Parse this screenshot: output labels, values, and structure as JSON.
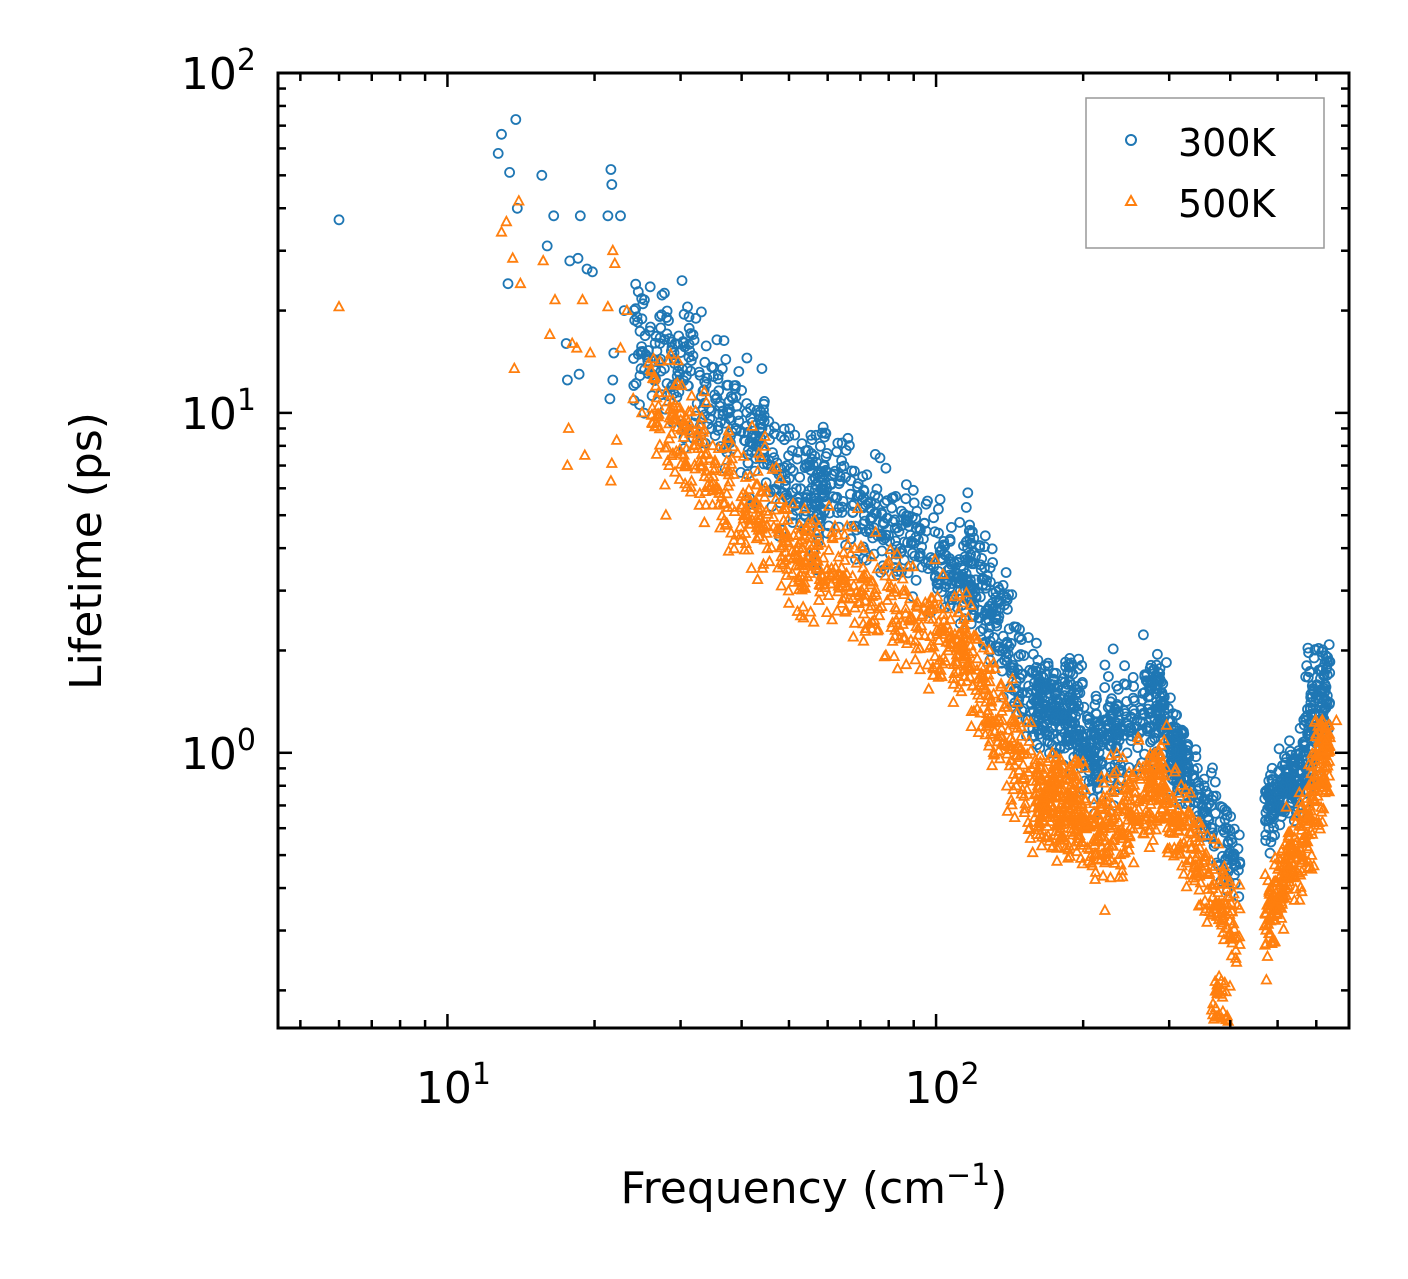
{
  "chart_data": {
    "type": "scatter",
    "title": "",
    "xlabel": "Frequency (cm",
    "xlabel_exp": "−1",
    "xlabel_suffix": ")",
    "ylabel": "Lifetime (ps)",
    "xscale": "log",
    "yscale": "log",
    "xlim": [
      4.5,
      700
    ],
    "ylim": [
      0.155,
      100
    ],
    "x_ticks": [
      {
        "value": 10,
        "base": "10",
        "exp": "1"
      },
      {
        "value": 100,
        "base": "10",
        "exp": "2"
      }
    ],
    "y_ticks": [
      {
        "value": 1,
        "base": "10",
        "exp": "0"
      },
      {
        "value": 10,
        "base": "10",
        "exp": "1"
      },
      {
        "value": 100,
        "base": "10",
        "exp": "2"
      }
    ],
    "legend_position": "top-right",
    "series": [
      {
        "name": "300K",
        "marker": "circle",
        "color": "#1f77b4",
        "outliers": [
          [
            6.0,
            37
          ],
          [
            12.7,
            58
          ],
          [
            12.9,
            66
          ],
          [
            13.3,
            24
          ],
          [
            13.4,
            51
          ],
          [
            13.8,
            73
          ],
          [
            13.9,
            40
          ],
          [
            15.6,
            50
          ],
          [
            16.0,
            31
          ],
          [
            16.5,
            38
          ],
          [
            17.5,
            16
          ],
          [
            17.6,
            12.5
          ],
          [
            17.8,
            28
          ],
          [
            18.5,
            28.5
          ],
          [
            18.6,
            13
          ],
          [
            18.7,
            38
          ],
          [
            19.3,
            26.5
          ],
          [
            19.8,
            26
          ],
          [
            21.3,
            38
          ],
          [
            21.5,
            11
          ],
          [
            21.6,
            52
          ],
          [
            21.7,
            47
          ],
          [
            21.8,
            12.5
          ],
          [
            21.9,
            15
          ],
          [
            22.6,
            38
          ],
          [
            23.0,
            20
          ],
          [
            24.5,
            18.5
          ],
          [
            25.0,
            15
          ],
          [
            25.3,
            21.5
          ],
          [
            26.0,
            23.5
          ],
          [
            27.8,
            22.5
          ],
          [
            30.2,
            24.5
          ],
          [
            30.5,
            19.5
          ],
          [
            31.0,
            20.5
          ],
          [
            41.0,
            14.5
          ],
          [
            44.0,
            13.5
          ]
        ],
        "bands": [
          {
            "x_start": 24,
            "x_end": 60,
            "y_start": 17,
            "y_end": 5.5,
            "spread": 0.18
          },
          {
            "x_start": 55,
            "x_end": 120,
            "y_start": 6.5,
            "y_end": 3.2,
            "spread": 0.15
          },
          {
            "x_start": 115,
            "x_end": 165,
            "y_start": 3.8,
            "y_end": 1.3,
            "spread": 0.16
          },
          {
            "x_start": 160,
            "x_end": 215,
            "y_start": 1.5,
            "y_end": 0.95,
            "spread": 0.13
          },
          {
            "x_start": 210,
            "x_end": 290,
            "y_start": 1.05,
            "y_end": 1.4,
            "spread": 0.17
          },
          {
            "x_start": 285,
            "x_end": 420,
            "y_start": 1.3,
            "y_end": 0.45,
            "spread": 0.12
          },
          {
            "x_start": 470,
            "x_end": 540,
            "y_start": 0.65,
            "y_end": 0.85,
            "spread": 0.1
          },
          {
            "x_start": 540,
            "x_end": 640,
            "y_start": 0.8,
            "y_end": 1.6,
            "spread": 0.14
          }
        ],
        "peaks": [
          [
            175,
            1.8
          ],
          [
            190,
            1.9
          ],
          [
            280,
            1.85
          ],
          [
            312,
            1.2
          ],
          [
            610,
            2.05
          ]
        ]
      },
      {
        "name": "500K",
        "marker": "triangle",
        "color": "#ff7f0e",
        "outliers": [
          [
            6.0,
            20.5
          ],
          [
            12.9,
            34
          ],
          [
            13.2,
            36.5
          ],
          [
            13.6,
            28.5
          ],
          [
            13.7,
            13.5
          ],
          [
            14.0,
            42
          ],
          [
            14.1,
            24
          ],
          [
            15.7,
            28
          ],
          [
            16.2,
            17
          ],
          [
            16.6,
            21.5
          ],
          [
            17.6,
            7
          ],
          [
            17.7,
            9
          ],
          [
            18.0,
            16
          ],
          [
            18.4,
            15.5
          ],
          [
            18.9,
            21.5
          ],
          [
            19.1,
            7.5
          ],
          [
            19.6,
            15
          ],
          [
            21.3,
            20.5
          ],
          [
            21.6,
            6.3
          ],
          [
            21.7,
            7.1
          ],
          [
            21.8,
            30
          ],
          [
            22.0,
            27.5
          ],
          [
            22.2,
            8.3
          ],
          [
            22.6,
            15.5
          ],
          [
            23.3,
            20
          ],
          [
            24.0,
            11
          ],
          [
            25.0,
            10
          ],
          [
            25.8,
            14
          ],
          [
            28.0,
            5
          ],
          [
            30.0,
            10
          ]
        ],
        "bands": [
          {
            "x_start": 26,
            "x_end": 55,
            "y_start": 11,
            "y_end": 3.4,
            "spread": 0.18
          },
          {
            "x_start": 52,
            "x_end": 115,
            "y_start": 3.8,
            "y_end": 2.0,
            "spread": 0.16
          },
          {
            "x_start": 110,
            "x_end": 165,
            "y_start": 2.3,
            "y_end": 0.7,
            "spread": 0.17
          },
          {
            "x_start": 160,
            "x_end": 215,
            "y_start": 0.75,
            "y_end": 0.55,
            "spread": 0.13
          },
          {
            "x_start": 210,
            "x_end": 295,
            "y_start": 0.55,
            "y_end": 0.85,
            "spread": 0.17
          },
          {
            "x_start": 290,
            "x_end": 420,
            "y_start": 0.8,
            "y_end": 0.28,
            "spread": 0.14
          },
          {
            "x_start": 470,
            "x_end": 540,
            "y_start": 0.3,
            "y_end": 0.5,
            "spread": 0.13
          },
          {
            "x_start": 540,
            "x_end": 640,
            "y_start": 0.45,
            "y_end": 1.05,
            "spread": 0.15
          }
        ],
        "peaks": [
          [
            175,
            1.0
          ],
          [
            190,
            0.95
          ],
          [
            280,
            1.0
          ],
          [
            612,
            1.25
          ],
          [
            382,
            0.22
          ]
        ]
      }
    ]
  }
}
